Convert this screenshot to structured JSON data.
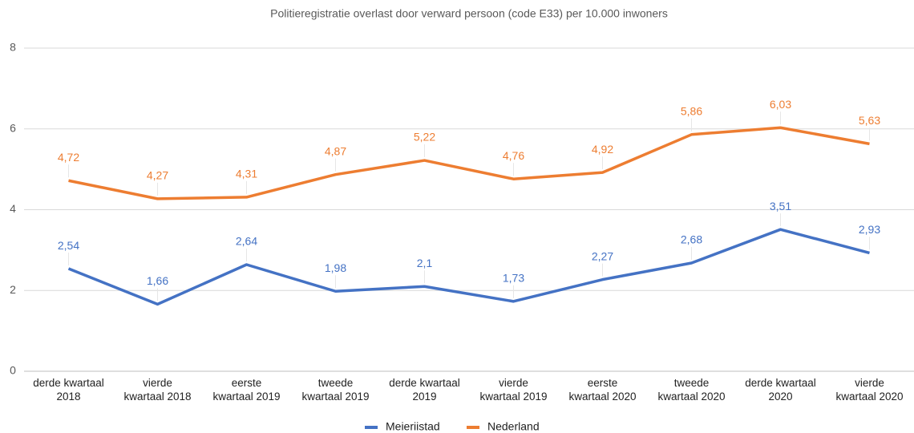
{
  "chart_data": {
    "type": "line",
    "title": "Politieregistratie overlast door verward persoon (code E33) per 10.000 inwoners",
    "categories": [
      "derde kwartaal\n2018",
      "vierde\nkwartaal 2018",
      "eerste\nkwartaal 2019",
      "tweede\nkwartaal 2019",
      "derde kwartaal\n2019",
      "vierde\nkwartaal 2019",
      "eerste\nkwartaal 2020",
      "tweede\nkwartaal 2020",
      "derde kwartaal\n2020",
      "vierde\nkwartaal 2020"
    ],
    "series": [
      {
        "name": "Meieriistad",
        "color": "#4472c4",
        "values": [
          2.54,
          1.66,
          2.64,
          1.98,
          2.1,
          1.73,
          2.27,
          2.68,
          3.51,
          2.93
        ],
        "value_labels": [
          "2,54",
          "1,66",
          "2,64",
          "1,98",
          "2,1",
          "1,73",
          "2,27",
          "2,68",
          "3,51",
          "2,93"
        ]
      },
      {
        "name": "Nederland",
        "color": "#ed7d31",
        "values": [
          4.72,
          4.27,
          4.31,
          4.87,
          5.22,
          4.76,
          4.92,
          5.86,
          6.03,
          5.63
        ],
        "value_labels": [
          "4,72",
          "4,27",
          "4,31",
          "4,87",
          "5,22",
          "4,76",
          "4,92",
          "5,86",
          "6,03",
          "5,63"
        ]
      }
    ],
    "ylim": [
      0,
      8
    ],
    "yticks": [
      0,
      2,
      4,
      6,
      8
    ],
    "grid": true,
    "legend": "bottom"
  }
}
